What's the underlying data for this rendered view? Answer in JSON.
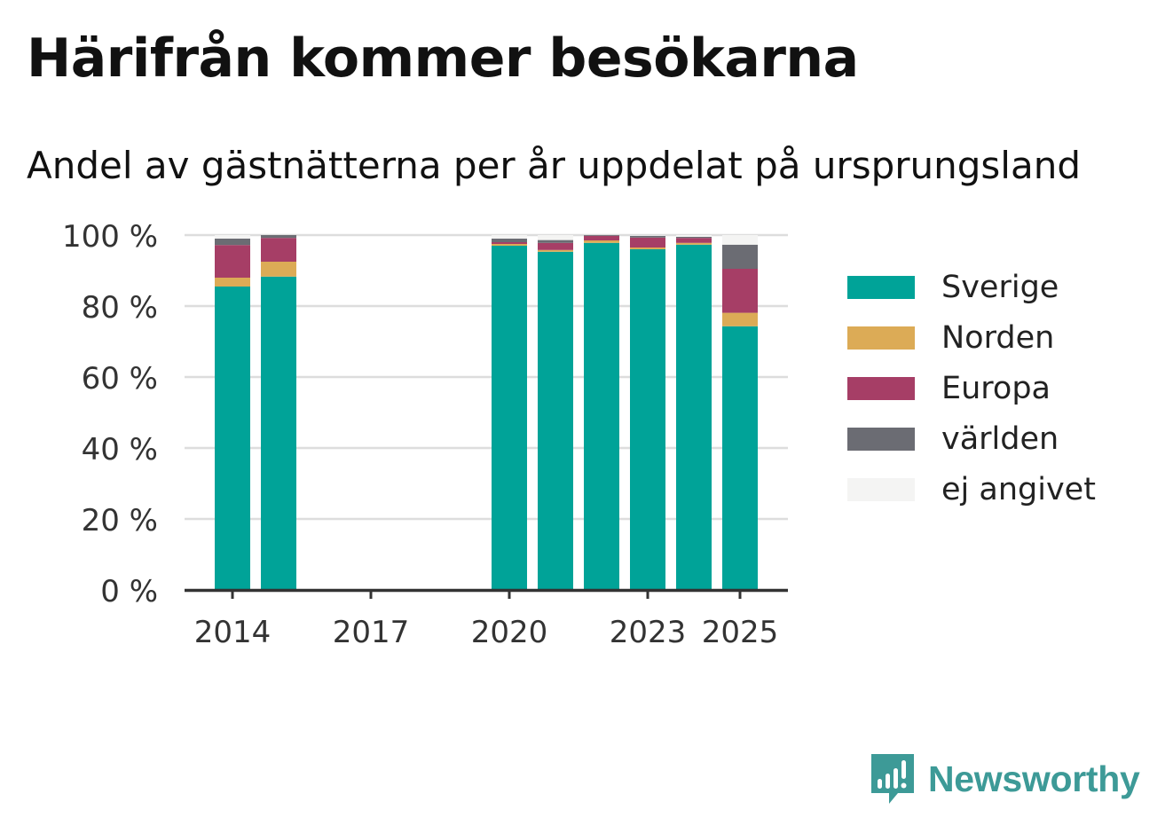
{
  "title": "Härifrån kommer besökarna",
  "subtitle": "Andel av gästnätterna per år uppdelat på ursprungsland",
  "brand": {
    "name": "Newsworthy",
    "color": "#3d9a97",
    "icon": "bar-chart-speech-bubble-icon"
  },
  "colors": {
    "Sverige": "#00a398",
    "Norden": "#dcab56",
    "Europa": "#a63e66",
    "världen": "#6b6c73",
    "ej angivet": "#f4f4f3",
    "grid": "#dddddd",
    "axis": "#333333"
  },
  "chart_data": {
    "type": "bar",
    "stacked": true,
    "categories": [
      2014,
      2015,
      2016,
      2017,
      2018,
      2019,
      2020,
      2021,
      2022,
      2023,
      2024,
      2025
    ],
    "x_tick_labels": [
      "2014",
      "2017",
      "2020",
      "2023",
      "2025"
    ],
    "y_tick_labels": [
      "0 %",
      "20 %",
      "40 %",
      "60 %",
      "80 %",
      "100 %"
    ],
    "ylim": [
      0,
      100
    ],
    "grid": true,
    "legend_position": "right",
    "series": [
      {
        "name": "Sverige",
        "values": [
          85.5,
          88.3,
          null,
          null,
          null,
          null,
          97.0,
          95.3,
          97.8,
          96.0,
          97.3,
          74.3
        ]
      },
      {
        "name": "Norden",
        "values": [
          2.5,
          4.2,
          null,
          null,
          null,
          null,
          0.5,
          0.5,
          0.7,
          0.5,
          0.5,
          3.8
        ]
      },
      {
        "name": "Europa",
        "values": [
          9.2,
          6.7,
          null,
          null,
          null,
          null,
          0.5,
          2.0,
          1.3,
          2.8,
          1.4,
          12.4
        ]
      },
      {
        "name": "världen",
        "values": [
          1.8,
          0.8,
          null,
          null,
          null,
          null,
          1.0,
          0.8,
          0.2,
          0.5,
          0.3,
          6.8
        ]
      },
      {
        "name": "ej angivet",
        "values": [
          1.0,
          0.0,
          null,
          null,
          null,
          null,
          1.0,
          1.4,
          0.0,
          0.2,
          0.5,
          2.7
        ]
      }
    ]
  }
}
